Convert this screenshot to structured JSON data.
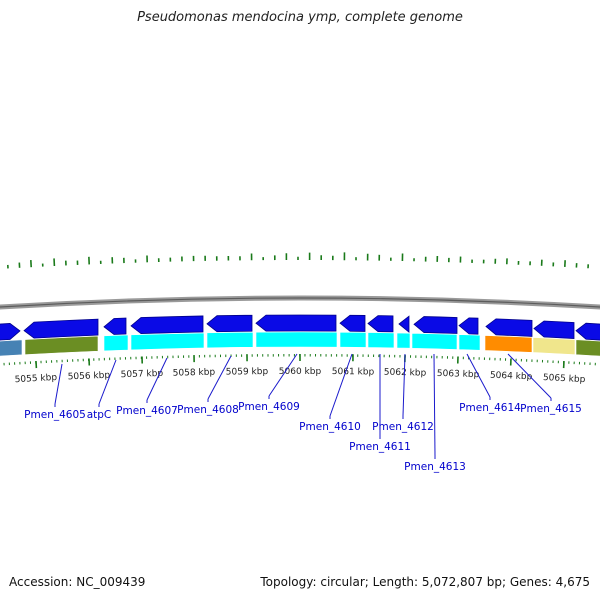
{
  "title": "Pseudomonas mendocina ymp, complete genome",
  "footer": {
    "accession": "Accession: NC_009439",
    "summary": "Topology: circular; Length: 5,072,807 bp; Genes: 4,675"
  },
  "colors": {
    "forward_gene": "#0a0ae6",
    "reverse_cds": "#00ffff",
    "olive_feature": "#6b8e23",
    "steel_feature": "#4682b4",
    "orange_feature": "#ff8c00",
    "khaki_feature": "#f0e68c",
    "backbone": "#888888",
    "ticks": "#1a7a1a",
    "gene_label": "#0000cc"
  },
  "scale": {
    "labels": [
      "5055 kbp",
      "5056 kbp",
      "5057 kbp",
      "5058 kbp",
      "5059 kbp",
      "5060 kbp",
      "5061 kbp",
      "5062 kbp",
      "5063 kbp",
      "5064 kbp",
      "5065 kbp"
    ]
  },
  "gene_labels": [
    "Pmen_4605",
    "atpC",
    "Pmen_4607",
    "Pmen_4608",
    "Pmen_4609",
    "Pmen_4610",
    "Pmen_4611",
    "Pmen_4612",
    "Pmen_4613",
    "Pmen_4614",
    "Pmen_4615"
  ]
}
